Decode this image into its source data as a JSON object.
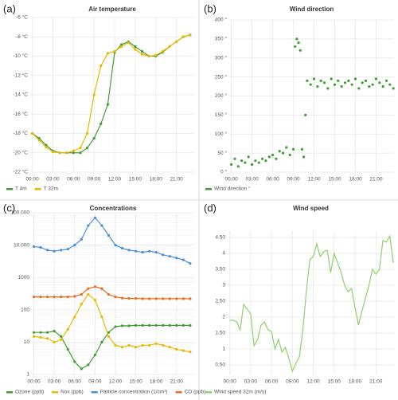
{
  "chart_data": [
    {
      "type": "line",
      "panel_label": "(a)",
      "title": "Air temperature",
      "markers": true,
      "grid": true,
      "x": [
        0,
        1,
        2,
        3,
        4,
        5,
        6,
        7,
        8,
        9,
        10,
        11,
        12,
        13,
        14,
        15,
        16,
        17,
        18,
        19,
        20,
        21,
        22,
        23
      ],
      "xlim": [
        -0.3,
        23.6
      ],
      "xticks": [
        {
          "value": 0,
          "label": "00:00"
        },
        {
          "value": 3,
          "label": "03:00"
        },
        {
          "value": 6,
          "label": "06:00"
        },
        {
          "value": 9,
          "label": "09:00"
        },
        {
          "value": 12,
          "label": "12:00"
        },
        {
          "value": 15,
          "label": "15:00"
        },
        {
          "value": 18,
          "label": "18:00"
        },
        {
          "value": 21,
          "label": "21:00"
        }
      ],
      "ylim": [
        -22,
        -6
      ],
      "yticks": [
        {
          "value": -6,
          "label": "-6 °C"
        },
        {
          "value": -8,
          "label": "-8 °C"
        },
        {
          "value": -10,
          "label": "-10 °C"
        },
        {
          "value": -12,
          "label": "-12 °C"
        },
        {
          "value": -14,
          "label": "-14 °C"
        },
        {
          "value": -16,
          "label": "-16 °C"
        },
        {
          "value": -18,
          "label": "-18 °C"
        },
        {
          "value": -20,
          "label": "-20 °C"
        },
        {
          "value": -22,
          "label": "-22 °C"
        }
      ],
      "series": [
        {
          "name": "T 4m",
          "color": "#3f9e32",
          "values": [
            -18,
            -18.5,
            -19.2,
            -19.8,
            -20,
            -20,
            -20,
            -20,
            -19.5,
            -18.5,
            -17,
            -15,
            -9.6,
            -8.8,
            -8.5,
            -9,
            -9.5,
            -10,
            -10,
            -9.6,
            -9,
            -8.5,
            -8,
            -7.8
          ]
        },
        {
          "name": "T 32m",
          "color": "#e8b800",
          "values": [
            -18,
            -18.7,
            -19.4,
            -19.9,
            -20,
            -20,
            -19.8,
            -19.5,
            -18,
            -14,
            -11,
            -9.7,
            -9.5,
            -9,
            -8.6,
            -9.3,
            -9.8,
            -10,
            -9.9,
            -9.5,
            -9,
            -8.5,
            -8,
            -7.8
          ]
        }
      ]
    },
    {
      "type": "scatter",
      "panel_label": "(b)",
      "title": "Wind direction",
      "grid": true,
      "x": [
        0,
        0.5,
        1,
        1.5,
        2,
        2.5,
        3,
        3.5,
        4,
        4.5,
        5,
        5.5,
        6,
        6.5,
        7,
        7.5,
        8,
        8.5,
        9,
        9.25,
        9.5,
        9.75,
        10,
        10.25,
        10.5,
        10.75,
        11,
        11.5,
        12,
        12.5,
        13,
        13.5,
        14,
        14.5,
        15,
        15.5,
        16,
        16.5,
        17,
        17.5,
        18,
        18.5,
        19,
        19.5,
        20,
        20.5,
        21,
        21.5,
        22,
        22.5,
        23,
        23.5
      ],
      "xlim": [
        -0.3,
        23.6
      ],
      "xticks": [
        {
          "value": 0,
          "label": "00:00"
        },
        {
          "value": 3,
          "label": "03:00"
        },
        {
          "value": 6,
          "label": "06:00"
        },
        {
          "value": 9,
          "label": "09:00"
        },
        {
          "value": 12,
          "label": "12:00"
        },
        {
          "value": 15,
          "label": "15:00"
        },
        {
          "value": 18,
          "label": "18:00"
        },
        {
          "value": 21,
          "label": "21:00"
        }
      ],
      "ylim": [
        0,
        400
      ],
      "yticks": [
        {
          "value": 0,
          "label": "0 °"
        },
        {
          "value": 50,
          "label": "50 °"
        },
        {
          "value": 100,
          "label": "100 °"
        },
        {
          "value": 150,
          "label": "150 °"
        },
        {
          "value": 200,
          "label": "200 °"
        },
        {
          "value": 250,
          "label": "250 °"
        },
        {
          "value": 300,
          "label": "300 °"
        },
        {
          "value": 350,
          "label": "350 °"
        },
        {
          "value": 400,
          "label": "400 °"
        }
      ],
      "series": [
        {
          "name": "Wind direction °",
          "color": "#3f9e32",
          "values": [
            20,
            35,
            15,
            30,
            25,
            40,
            20,
            30,
            25,
            35,
            30,
            40,
            45,
            35,
            55,
            50,
            65,
            45,
            60,
            330,
            350,
            340,
            320,
            60,
            40,
            150,
            240,
            230,
            245,
            225,
            240,
            235,
            220,
            245,
            230,
            240,
            225,
            235,
            240,
            230,
            245,
            220,
            235,
            240,
            225,
            230,
            245,
            235,
            225,
            240,
            230,
            220
          ]
        }
      ]
    },
    {
      "type": "line",
      "panel_label": "(c)",
      "title": "Concentrations",
      "markers": true,
      "grid": true,
      "log_scale": true,
      "x": [
        0,
        1,
        2,
        3,
        4,
        5,
        6,
        7,
        8,
        9,
        10,
        11,
        12,
        13,
        14,
        15,
        16,
        17,
        18,
        19,
        20,
        21,
        22,
        23
      ],
      "xlim": [
        -0.3,
        23.6
      ],
      "xticks": [
        {
          "value": 0,
          "label": "00:00"
        },
        {
          "value": 3,
          "label": "03:00"
        },
        {
          "value": 6,
          "label": "06:00"
        },
        {
          "value": 9,
          "label": "09:00"
        },
        {
          "value": 12,
          "label": "12:00"
        },
        {
          "value": 15,
          "label": "15:00"
        },
        {
          "value": 18,
          "label": "18:00"
        },
        {
          "value": 21,
          "label": "21:00"
        }
      ],
      "ylim": [
        1,
        100000
      ],
      "yticks": [
        1,
        10,
        100,
        1000,
        {
          "value": 10000,
          "label": "10.000"
        },
        {
          "value": 100000,
          "label": "100.000"
        }
      ],
      "series": [
        {
          "name": "Ozone (ppb)",
          "color": "#3f9e32",
          "values": [
            20,
            20,
            20,
            22,
            15,
            6,
            2.5,
            1.5,
            2,
            4,
            10,
            20,
            30,
            32,
            32,
            33,
            33,
            33,
            33,
            33,
            33,
            33,
            33,
            33
          ]
        },
        {
          "name": "Nox (ppb)",
          "color": "#e8b800",
          "values": [
            15,
            14,
            13,
            10,
            12,
            25,
            60,
            150,
            300,
            200,
            60,
            15,
            8,
            7,
            8,
            7,
            8,
            8,
            9,
            8,
            7,
            6,
            5.5,
            5
          ]
        },
        {
          "name": "Particle concentration (1/cm³)",
          "color": "#4a8fdc",
          "values": [
            9000,
            8500,
            7000,
            6500,
            7000,
            7500,
            10000,
            15000,
            40000,
            70000,
            40000,
            20000,
            10000,
            8000,
            7000,
            6500,
            6000,
            6500,
            6000,
            5000,
            4500,
            4000,
            3500,
            2700
          ]
        },
        {
          "name": "CO (ppb)",
          "color": "#ef6a1e",
          "values": [
            250,
            250,
            250,
            250,
            250,
            250,
            260,
            300,
            450,
            520,
            450,
            300,
            250,
            230,
            225,
            225,
            220,
            220,
            220,
            220,
            220,
            220,
            220,
            220
          ]
        }
      ]
    },
    {
      "type": "line",
      "panel_label": "(d)",
      "title": "Wind speed",
      "markers": false,
      "grid": true,
      "x": [
        0,
        0.5,
        1,
        1.5,
        2,
        2.5,
        3,
        3.5,
        4,
        4.5,
        5,
        5.5,
        6,
        6.5,
        7,
        7.5,
        8,
        8.5,
        9,
        9.5,
        10,
        10.5,
        11,
        11.5,
        12,
        12.5,
        13,
        13.5,
        14,
        14.5,
        15,
        15.5,
        16,
        16.5,
        17,
        17.5,
        18,
        18.5,
        19,
        19.5,
        20,
        20.5,
        21,
        21.5,
        22,
        22.5,
        23,
        23.5
      ],
      "xlim": [
        -0.3,
        23.6
      ],
      "xticks": [
        {
          "value": 0,
          "label": "00:00"
        },
        {
          "value": 3,
          "label": "03:00"
        },
        {
          "value": 6,
          "label": "06:00"
        },
        {
          "value": 9,
          "label": "09:00"
        },
        {
          "value": 12,
          "label": "12:00"
        },
        {
          "value": 15,
          "label": "15:00"
        },
        {
          "value": 18,
          "label": "18:00"
        },
        {
          "value": 21,
          "label": "21:00"
        }
      ],
      "ylim": [
        0.2,
        4.7
      ],
      "yticks": [
        {
          "value": 0.5,
          "label": "0.50"
        },
        1,
        {
          "value": 1.5,
          "label": "1.50"
        },
        2,
        {
          "value": 2.5,
          "label": "2.50"
        },
        3,
        {
          "value": 3.5,
          "label": "3.50"
        },
        4,
        {
          "value": 4.5,
          "label": "4.50"
        }
      ],
      "series": [
        {
          "name": "Wind speed 32m (m/s)",
          "color": "#8fd16e",
          "values": [
            1.9,
            1.9,
            1.85,
            1.6,
            2.4,
            2.25,
            2.1,
            1.1,
            1.3,
            1.75,
            1.85,
            1.6,
            1.55,
            1.0,
            1.3,
            0.9,
            1.05,
            0.7,
            0.3,
            0.55,
            0.75,
            1.6,
            2.8,
            3.8,
            3.9,
            4.3,
            3.9,
            4.05,
            4.1,
            3.4,
            4.0,
            3.7,
            3.4,
            3.0,
            2.8,
            2.9,
            2.3,
            1.75,
            2.2,
            2.6,
            3.0,
            3.5,
            3.35,
            3.5,
            4.4,
            4.35,
            4.55,
            3.7
          ]
        }
      ]
    }
  ]
}
